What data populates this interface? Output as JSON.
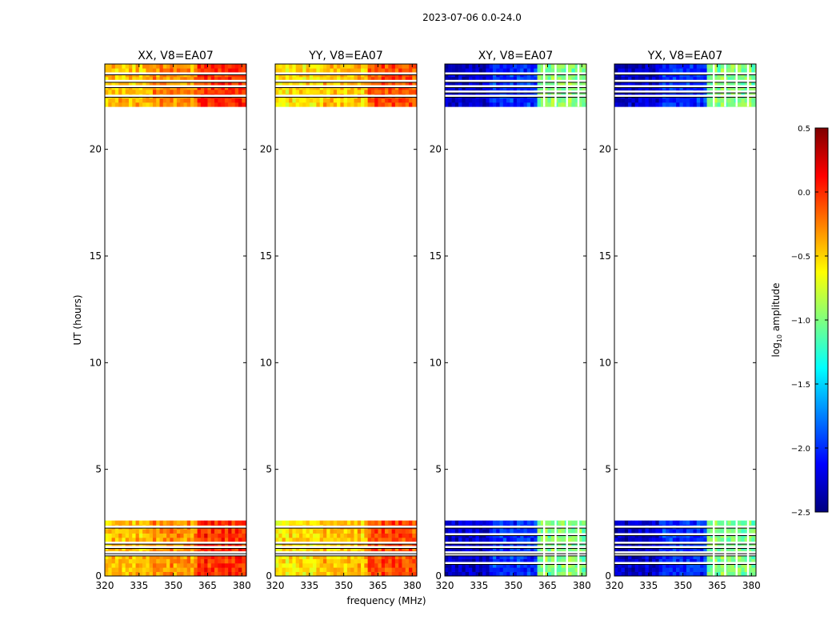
{
  "figure": {
    "suptitle": "2023-07-06 0.0-24.0",
    "xlabel": "frequency (MHz)",
    "ylabel": "UT (hours)"
  },
  "colorbar": {
    "label_main": "log",
    "label_sub": "10",
    "label_rest": " amplitude",
    "colormap": "jet",
    "range": [
      -2.5,
      0.5
    ],
    "ticks": [
      -2.5,
      -2.0,
      -1.5,
      -1.0,
      -0.5,
      0.0,
      0.5
    ],
    "tick_labels": [
      "−2.5",
      "−2.0",
      "−1.5",
      "−1.0",
      "−0.5",
      "0.0",
      "0.5"
    ],
    "colors": [
      "#00007f",
      "#0000ff",
      "#007fff",
      "#00ffff",
      "#7fff7f",
      "#ffff00",
      "#ff7f00",
      "#ff0000",
      "#7f0000"
    ]
  },
  "chart_data": [
    {
      "type": "heatmap",
      "title": "XX, V8=EA07",
      "xlim": [
        320,
        382
      ],
      "ylim": [
        0,
        24
      ],
      "xticks": [
        320,
        335,
        350,
        365,
        380
      ],
      "yticks": [
        0,
        5,
        10,
        15,
        20
      ],
      "data_ranges_hours": [
        [
          0,
          2.6
        ],
        [
          22,
          24
        ]
      ],
      "flagged_rows_hours": [
        1.0,
        1.1,
        1.35,
        1.55,
        2.3,
        22.5,
        22.95,
        23.2,
        23.55
      ],
      "flagged_channels_mhz": [],
      "level_by_band": [
        {
          "from": 320,
          "to": 340,
          "value": -0.45
        },
        {
          "from": 340,
          "to": 360,
          "value": -0.3
        },
        {
          "from": 360,
          "to": 382,
          "value": 0.0
        }
      ]
    },
    {
      "type": "heatmap",
      "title": "YY, V8=EA07",
      "xlim": [
        320,
        382
      ],
      "ylim": [
        0,
        24
      ],
      "xticks": [
        320,
        335,
        350,
        365,
        380
      ],
      "yticks": [
        0,
        5,
        10,
        15,
        20
      ],
      "data_ranges_hours": [
        [
          0,
          2.6
        ],
        [
          22,
          24
        ]
      ],
      "flagged_rows_hours": [
        1.0,
        1.1,
        1.35,
        1.55,
        2.3,
        22.5,
        22.95,
        23.2,
        23.55
      ],
      "flagged_channels_mhz": [],
      "level_by_band": [
        {
          "from": 320,
          "to": 340,
          "value": -0.55
        },
        {
          "from": 340,
          "to": 360,
          "value": -0.45
        },
        {
          "from": 360,
          "to": 382,
          "value": -0.1
        }
      ]
    },
    {
      "type": "heatmap",
      "title": "XY, V8=EA07",
      "xlim": [
        320,
        382
      ],
      "ylim": [
        0,
        24
      ],
      "xticks": [
        320,
        335,
        350,
        365,
        380
      ],
      "yticks": [
        0,
        5,
        10,
        15,
        20
      ],
      "data_ranges_hours": [
        [
          0,
          2.6
        ],
        [
          22,
          24
        ]
      ],
      "flagged_rows_hours": [
        0.6,
        1.0,
        1.1,
        1.35,
        1.55,
        1.95,
        2.3,
        22.5,
        22.7,
        22.95,
        23.2,
        23.55
      ],
      "flagged_channels_mhz": [
        363.5,
        368.5,
        373.5,
        378.5
      ],
      "level_by_band": [
        {
          "from": 320,
          "to": 340,
          "value": -2.3
        },
        {
          "from": 340,
          "to": 360,
          "value": -2.0
        },
        {
          "from": 360,
          "to": 382,
          "value": -1.0
        }
      ]
    },
    {
      "type": "heatmap",
      "title": "YX, V8=EA07",
      "xlim": [
        320,
        382
      ],
      "ylim": [
        0,
        24
      ],
      "xticks": [
        320,
        335,
        350,
        365,
        380
      ],
      "yticks": [
        0,
        5,
        10,
        15,
        20
      ],
      "data_ranges_hours": [
        [
          0,
          2.6
        ],
        [
          22,
          24
        ]
      ],
      "flagged_rows_hours": [
        0.6,
        1.0,
        1.1,
        1.35,
        1.55,
        1.95,
        2.3,
        22.5,
        22.7,
        22.95,
        23.2,
        23.55
      ],
      "flagged_channels_mhz": [
        363.5,
        368.5,
        373.5,
        378.5
      ],
      "level_by_band": [
        {
          "from": 320,
          "to": 340,
          "value": -2.3
        },
        {
          "from": 340,
          "to": 360,
          "value": -2.0
        },
        {
          "from": 360,
          "to": 382,
          "value": -1.0
        }
      ]
    }
  ]
}
